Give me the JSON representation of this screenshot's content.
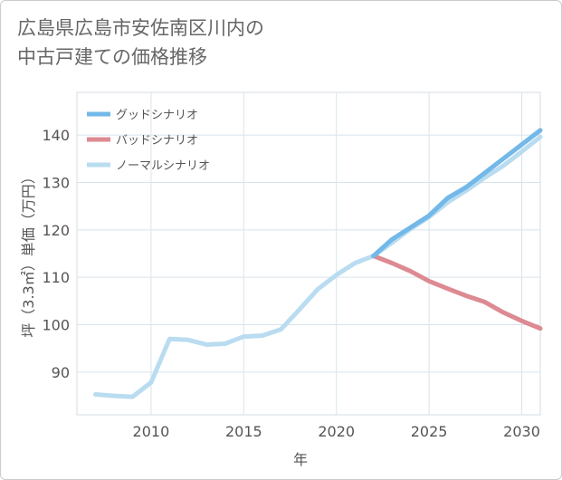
{
  "title_lines": [
    "広島県広島市安佐南区川内の",
    "中古戸建ての価格推移"
  ],
  "chart_data": {
    "type": "line",
    "title": "広島県広島市安佐南区川内の中古戸建ての価格推移",
    "xlabel": "年",
    "ylabel": "坪（3.3㎡）単価（万円）",
    "xlim": [
      2006,
      2031
    ],
    "ylim": [
      81,
      149
    ],
    "x_ticks": [
      2010,
      2015,
      2020,
      2025,
      2030
    ],
    "y_ticks": [
      90,
      100,
      110,
      120,
      130,
      140
    ],
    "legend_position": "top-left",
    "series": [
      {
        "name": "グッドシナリオ",
        "color": "#72b8e8",
        "x": [
          2022,
          2023,
          2024,
          2025,
          2026,
          2027,
          2028,
          2029,
          2030,
          2031
        ],
        "y": [
          114.5,
          118,
          120.5,
          123,
          126.7,
          129,
          132,
          135,
          138,
          141
        ]
      },
      {
        "name": "バッドシナリオ",
        "color": "#dd8a92",
        "x": [
          2022,
          2023,
          2024,
          2025,
          2026,
          2027,
          2028,
          2029,
          2030,
          2031
        ],
        "y": [
          114.5,
          113,
          111.3,
          109.2,
          107.6,
          106.1,
          104.8,
          102.6,
          100.8,
          99.2
        ]
      },
      {
        "name": "ノーマルシナリオ",
        "color": "#b9dcf0",
        "x": [
          2007,
          2008,
          2009,
          2010,
          2011,
          2012,
          2013,
          2014,
          2015,
          2016,
          2017,
          2018,
          2019,
          2020,
          2021,
          2022,
          2023,
          2024,
          2025,
          2026,
          2027,
          2028,
          2029,
          2030,
          2031
        ],
        "y": [
          85.3,
          85,
          84.8,
          87.8,
          97,
          96.8,
          95.8,
          96,
          97.5,
          97.7,
          99,
          103.2,
          107.5,
          110.5,
          113,
          114.5,
          117.3,
          120.2,
          122.7,
          125.8,
          128.3,
          131,
          133.5,
          136.5,
          139.6
        ]
      }
    ]
  }
}
